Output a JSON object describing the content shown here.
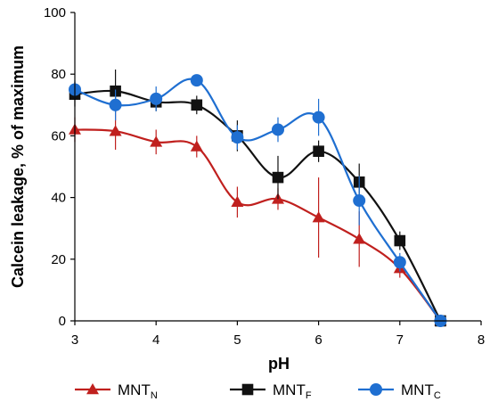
{
  "chart_data": {
    "type": "line",
    "xlabel": "pH",
    "ylabel": "Calcein leakage, % of maximum",
    "xlim": [
      3,
      8
    ],
    "ylim": [
      0,
      100
    ],
    "x_ticks": [
      "3",
      "4",
      "5",
      "6",
      "7",
      "8"
    ],
    "y_ticks": [
      "0",
      "20",
      "40",
      "60",
      "80",
      "100"
    ],
    "grid": false,
    "legend_position": "bottom",
    "x": [
      3,
      3.5,
      4,
      4.5,
      5,
      5.5,
      6,
      6.5,
      7,
      7.5
    ],
    "series": [
      {
        "name": "MNT",
        "name_sub": "N",
        "marker": "triangle",
        "color": "#c0201e",
        "values": [
          62,
          61.5,
          58,
          56.5,
          38.5,
          39.5,
          33.5,
          26.5,
          17,
          0
        ],
        "errors": [
          4,
          6,
          4,
          3.5,
          5,
          3.5,
          13,
          9,
          3,
          1
        ]
      },
      {
        "name": "MNT",
        "name_sub": "F",
        "marker": "square",
        "color": "#111111",
        "values": [
          73.5,
          74.5,
          71,
          70,
          60,
          46.5,
          55,
          45,
          26,
          0
        ],
        "errors": [
          4,
          7,
          3,
          3,
          5,
          7,
          3.5,
          6,
          3,
          1
        ]
      },
      {
        "name": "MNT",
        "name_sub": "C",
        "marker": "circle",
        "color": "#1f6fd1",
        "values": [
          75,
          70,
          72,
          78,
          59.5,
          62,
          66,
          39,
          19,
          0
        ],
        "errors": [
          3,
          5,
          4,
          1.5,
          4,
          4,
          6,
          8,
          3,
          1
        ]
      }
    ]
  }
}
